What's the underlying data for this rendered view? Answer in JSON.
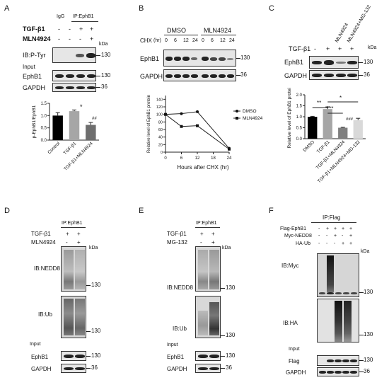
{
  "panels": {
    "A": {
      "letter": "A",
      "igg": "IgG",
      "ip": "IP:EphB1",
      "treat1": "TGF-β1",
      "treat2": "MLN4924",
      "t1_signs": [
        "-",
        "-",
        "+",
        "+"
      ],
      "t2_signs": [
        "-",
        "-",
        "-",
        "+"
      ],
      "kda": "kDa",
      "ib_ptyr": "IB:P-Tyr",
      "mw_ptyr": "130",
      "input": "Input",
      "ephb1": "EphB1",
      "mw_ephb1": "130",
      "gapdh": "GAPDH",
      "mw_gapdh": "36",
      "sig_star": "*",
      "sig_hash": "##"
    },
    "B": {
      "letter": "B",
      "dmso": "DMSO",
      "mln": "MLN4924",
      "chx": "CHX",
      "hr": "(hr)",
      "times": [
        "0",
        "6",
        "12",
        "24",
        "0",
        "6",
        "12",
        "24"
      ],
      "ephb1": "EphB1",
      "mw_ephb1": "130",
      "gapdh": "GAPDH",
      "mw_gapdh": "36"
    },
    "C": {
      "letter": "C",
      "mln": "MLN4924",
      "mln_mg": "MLN4924+MG-132",
      "treat": "TGF-β1",
      "signs": [
        "-",
        "+",
        "+",
        "+"
      ],
      "kda": "kDa",
      "ephb1": "EphB1",
      "mw_ephb1": "130",
      "gapdh": "GAPDH",
      "mw_gapdh": "36",
      "sig1": "**",
      "sig2": "***",
      "sig3": "*",
      "sig4": "###"
    },
    "D": {
      "letter": "D",
      "ip": "IP:EphB1",
      "treat1": "TGF-β1",
      "treat2": "MLN4924",
      "t1_signs": [
        "+",
        "+"
      ],
      "t2_signs": [
        "-",
        "+"
      ],
      "kda": "kDa",
      "ib_nedd8": "IB:NEDD8",
      "mw_nedd8": "130",
      "ib_ub": "IB:Ub",
      "mw_ub": "130",
      "input": "Input",
      "ephb1": "EphB1",
      "mw_ephb1": "130",
      "gapdh": "GAPDH",
      "mw_gapdh": "36"
    },
    "E": {
      "letter": "E",
      "ip": "IP:EphB1",
      "treat1": "TGF-β1",
      "treat2": "MG-132",
      "t1_signs": [
        "+",
        "+"
      ],
      "t2_signs": [
        "-",
        "+"
      ],
      "kda": "kDa",
      "ib_nedd8": "IB:NEDD8",
      "mw_nedd8": "130",
      "ib_ub": "IB:Ub",
      "mw_ub": "130",
      "input": "Input",
      "ephb1": "EphB1",
      "mw_ephb1": "130",
      "gapdh": "GAPDH",
      "mw_gapdh": "36"
    },
    "F": {
      "letter": "F",
      "ip": "IP:Flag",
      "r1": "Flag-EphB1",
      "r2": "Myc-NEDD8",
      "r3": "HA-Ub",
      "r1_signs": [
        "-",
        "+",
        "+",
        "+",
        "+"
      ],
      "r2_signs": [
        "-",
        "-",
        "+",
        "-",
        "+"
      ],
      "r3_signs": [
        "-",
        "-",
        "-",
        "+",
        "+"
      ],
      "kda": "kDa",
      "ib_myc": "IB:Myc",
      "mw_myc": "130",
      "ib_ha": "IB:HA",
      "mw_ha": "130",
      "input": "Input",
      "flag": "Flag",
      "mw_flag": "130",
      "gapdh": "GAPDH",
      "mw_gapdh": "36"
    }
  },
  "chart_data": [
    {
      "type": "bar",
      "panel": "A",
      "categories": [
        "Control",
        "TGF-β1",
        "TGF-β1+MLN4924"
      ],
      "values": [
        1.0,
        1.18,
        0.62
      ],
      "errors": [
        0.12,
        0.05,
        0.1
      ],
      "colors": [
        "#000000",
        "#a6a6a6",
        "#6e6e6e"
      ],
      "ylabel": "p-EphB1/EphB1",
      "ylim": [
        0,
        1.5
      ],
      "yticks": [
        "0.0",
        "0.5",
        "1.0",
        "1.5"
      ]
    },
    {
      "type": "line",
      "panel": "B",
      "x": [
        0,
        6,
        12,
        24
      ],
      "xticks": [
        "0",
        "6",
        "12",
        "18",
        "24"
      ],
      "series": [
        {
          "name": "DMSO",
          "marker": "circle",
          "values": [
            100,
            102,
            107,
            10
          ]
        },
        {
          "name": "MLN4924",
          "marker": "square",
          "values": [
            100,
            68,
            70,
            8
          ]
        }
      ],
      "xlabel": "Hours after CHX (hr)",
      "ylabel": "Relative level of EphB1 protein",
      "ylim": [
        0,
        150
      ],
      "yticks": [
        "0",
        "20",
        "40",
        "60",
        "80",
        "100",
        "120",
        "140"
      ],
      "legend": "right"
    },
    {
      "type": "bar",
      "panel": "C",
      "categories": [
        "DMSO",
        "TGF-β1",
        "TGF-β1+MLN4924",
        "TGF-β1+MLN4924+MG-132"
      ],
      "values": [
        1.0,
        1.35,
        0.5,
        0.85
      ],
      "errors": [
        0.02,
        0.1,
        0.02,
        0.08
      ],
      "colors": [
        "#000000",
        "#a6a6a6",
        "#7f7f7f",
        "#d9d9d9"
      ],
      "ylabel": "Relative level of EphB1 protein",
      "ylim": [
        0,
        2.0
      ],
      "yticks": [
        "0.0",
        "0.5",
        "1.0",
        "1.5",
        "2.0"
      ]
    }
  ]
}
